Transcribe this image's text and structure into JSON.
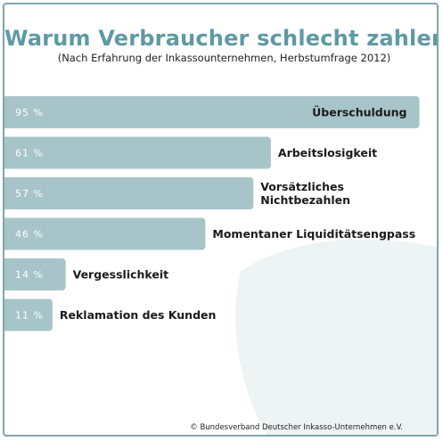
{
  "title": "Warum Verbraucher schlecht zahlen",
  "subtitle": "(Nach Erfahrung der Inkassounternehmen, Herbstumfrage 2012)",
  "copyright": "© Bundesverband Deutscher Inkasso-Unternehmen e.V.",
  "colors": {
    "bar": "#a7c4c9",
    "title": "#5e9aa3",
    "frame": "#7fa6ad",
    "swoosh": "#eef3f4"
  },
  "chart_data": {
    "type": "bar",
    "orientation": "horizontal",
    "unit": "%",
    "xlim": [
      0,
      100
    ],
    "grid": false,
    "categories": [
      "Überschuldung",
      "Arbeitslosigkeit",
      "Vorsätzliches Nichtbezahlen",
      "Momentaner Liquiditätsengpass",
      "Vergesslichkeit",
      "Reklamation des Kunden"
    ],
    "category_lines": [
      [
        "Überschuldung"
      ],
      [
        "Arbeitslosigkeit"
      ],
      [
        "Vorsätzliches",
        "Nichtbezahlen"
      ],
      [
        "Momentaner Liquiditätsengpass"
      ],
      [
        "Vergesslichkeit"
      ],
      [
        "Reklamation des Kunden"
      ]
    ],
    "values": [
      95,
      61,
      57,
      46,
      14,
      11
    ],
    "value_labels": [
      "95 %",
      "61 %",
      "57 %",
      "46 %",
      "14 %",
      "11 %"
    ]
  }
}
